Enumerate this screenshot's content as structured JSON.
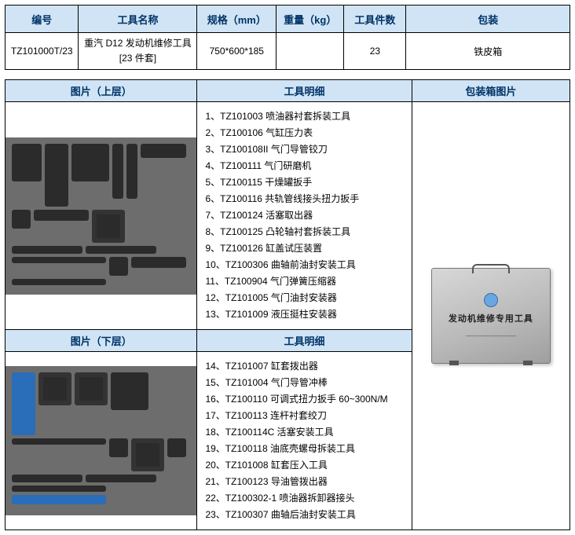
{
  "specTable": {
    "headers": {
      "id": "编号",
      "name": "工具名称",
      "spec": "规格（mm）",
      "weight": "重量（kg）",
      "count": "工具件数",
      "packaging": "包装"
    },
    "row": {
      "id": "TZ101000T/23",
      "name_line1": "重汽 D12 发动机维修工具",
      "name_line2": "[23 件套]",
      "spec": "750*600*185",
      "weight": "",
      "count": "23",
      "packaging": "铁皮箱"
    }
  },
  "detailTable": {
    "headers": {
      "image_upper": "图片（上层）",
      "tool_detail": "工具明细",
      "package_image": "包装箱图片",
      "image_lower": "图片（下层）"
    },
    "upperList": [
      "1、TZ101003   喷油器衬套拆装工具",
      "2、TZ100106   气缸压力表",
      "3、TZ100108II 气门导管铰刀",
      "4、TZ100111   气门研磨机",
      "5、TZ100115   干燥罐扳手",
      "6、TZ100116   共轨管线接头扭力扳手",
      "7、TZ100124   活塞取出器",
      "8、TZ100125   凸轮轴衬套拆装工具",
      "9、TZ100126   缸盖试压装置",
      "10、TZ100306 曲轴前油封安装工具",
      "11、TZ100904 气门弹簧压缩器",
      "12、TZ101005 气门油封安装器",
      "13、TZ101009 液压挺柱安装器"
    ],
    "lowerList": [
      "14、TZ101007 缸套拨出器",
      "15、TZ101004 气门导管冲棒",
      "16、TZ100110 可调式扭力扳手 60~300N/M",
      "17、TZ100113 连杆衬套绞刀",
      "18、TZ100114C 活塞安装工具",
      "19、TZ100118 油底壳螺母拆装工具",
      "20、TZ101008 缸套压入工具",
      "21、TZ100123 导油管拨出器",
      "22、TZ100302-1 喷油器拆卸器接头",
      "23、TZ100307 曲轴后油封安装工具"
    ],
    "caseLabel": "发动机维修专用工具"
  },
  "colors": {
    "headerBg": "#d0e4f5",
    "headerText": "#003366",
    "border": "#000000",
    "kitBg": "#6d6d6d",
    "toolDark": "#2b2b2b",
    "caseMetal": "#c4c4c4"
  }
}
